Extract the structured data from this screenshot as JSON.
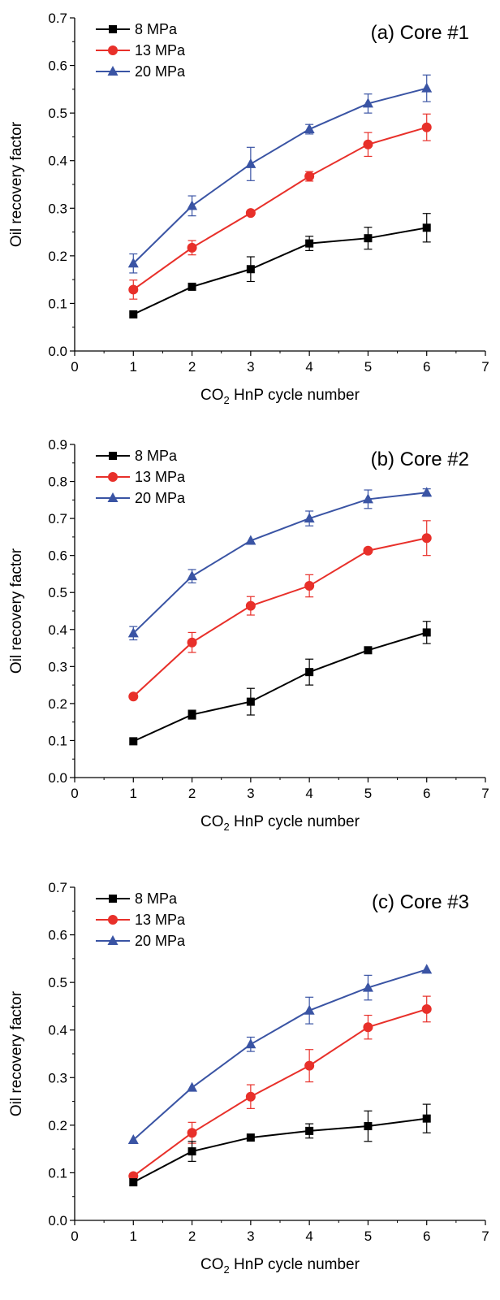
{
  "chart_data": [
    {
      "type": "line",
      "title": "(a) Core #1",
      "xlabel": "CO2 HnP cycle number",
      "ylabel": "Oil recovery factor",
      "xlim": [
        0,
        7
      ],
      "ylim": [
        0,
        0.7
      ],
      "xticks": [
        "0",
        "1",
        "2",
        "3",
        "4",
        "5",
        "6",
        "7"
      ],
      "yticks": [
        "0.0",
        "0.1",
        "0.2",
        "0.3",
        "0.4",
        "0.5",
        "0.6",
        "0.7"
      ],
      "legend": "top-left",
      "grid": false,
      "x": [
        1,
        2,
        3,
        4,
        5,
        6
      ],
      "series": [
        {
          "name": "8 MPa",
          "marker": "square",
          "color": "#000000",
          "values": [
            0.077,
            0.135,
            0.172,
            0.226,
            0.237,
            0.259
          ],
          "errors": [
            0.0,
            0.0,
            0.026,
            0.015,
            0.023,
            0.03
          ]
        },
        {
          "name": "13 MPa",
          "marker": "circle",
          "color": "#e8302a",
          "values": [
            0.129,
            0.217,
            0.29,
            0.367,
            0.434,
            0.47
          ],
          "errors": [
            0.02,
            0.015,
            0.0,
            0.01,
            0.025,
            0.028
          ]
        },
        {
          "name": "20 MPa",
          "marker": "triangle",
          "color": "#3a54a4",
          "values": [
            0.184,
            0.305,
            0.393,
            0.466,
            0.52,
            0.552
          ],
          "errors": [
            0.02,
            0.021,
            0.035,
            0.01,
            0.02,
            0.028
          ]
        }
      ]
    },
    {
      "type": "line",
      "title": "(b) Core #2",
      "xlabel": "CO2 HnP cycle number",
      "ylabel": "Oil recovery factor",
      "xlim": [
        0,
        7
      ],
      "ylim": [
        0,
        0.9
      ],
      "xticks": [
        "0",
        "1",
        "2",
        "3",
        "4",
        "5",
        "6",
        "7"
      ],
      "yticks": [
        "0.0",
        "0.1",
        "0.2",
        "0.3",
        "0.4",
        "0.5",
        "0.6",
        "0.7",
        "0.8",
        "0.9"
      ],
      "legend": "top-left",
      "grid": false,
      "x": [
        1,
        2,
        3,
        4,
        5,
        6
      ],
      "series": [
        {
          "name": "8 MPa",
          "marker": "square",
          "color": "#000000",
          "values": [
            0.098,
            0.17,
            0.205,
            0.285,
            0.344,
            0.392
          ],
          "errors": [
            0.0,
            0.012,
            0.036,
            0.035,
            0.0,
            0.03
          ]
        },
        {
          "name": "13 MPa",
          "marker": "circle",
          "color": "#e8302a",
          "values": [
            0.219,
            0.365,
            0.464,
            0.518,
            0.613,
            0.647
          ],
          "errors": [
            0.0,
            0.027,
            0.025,
            0.03,
            0.0,
            0.047
          ]
        },
        {
          "name": "20 MPa",
          "marker": "triangle",
          "color": "#3a54a4",
          "values": [
            0.39,
            0.544,
            0.64,
            0.7,
            0.752,
            0.77
          ],
          "errors": [
            0.018,
            0.018,
            0.0,
            0.02,
            0.025,
            0.01
          ]
        }
      ]
    },
    {
      "type": "line",
      "title": "(c) Core #3",
      "xlabel": "CO2 HnP cycle number",
      "ylabel": "Oil recovery factor",
      "xlim": [
        0,
        7
      ],
      "ylim": [
        0,
        0.7
      ],
      "xticks": [
        "0",
        "1",
        "2",
        "3",
        "4",
        "5",
        "6",
        "7"
      ],
      "yticks": [
        "0.0",
        "0.1",
        "0.2",
        "0.3",
        "0.4",
        "0.5",
        "0.6",
        "0.7"
      ],
      "legend": "top-left",
      "grid": false,
      "x": [
        1,
        2,
        3,
        4,
        5,
        6
      ],
      "series": [
        {
          "name": "8 MPa",
          "marker": "square",
          "color": "#000000",
          "values": [
            0.08,
            0.145,
            0.174,
            0.188,
            0.198,
            0.214
          ],
          "errors": [
            0.0,
            0.021,
            0.0,
            0.015,
            0.032,
            0.03
          ]
        },
        {
          "name": "13 MPa",
          "marker": "circle",
          "color": "#e8302a",
          "values": [
            0.093,
            0.184,
            0.26,
            0.325,
            0.406,
            0.444
          ],
          "errors": [
            0.0,
            0.022,
            0.025,
            0.034,
            0.025,
            0.027
          ]
        },
        {
          "name": "20 MPa",
          "marker": "triangle",
          "color": "#3a54a4",
          "values": [
            0.169,
            0.279,
            0.37,
            0.441,
            0.489,
            0.527
          ],
          "errors": [
            0.0,
            0.0,
            0.015,
            0.028,
            0.026,
            0.0
          ]
        }
      ]
    }
  ]
}
